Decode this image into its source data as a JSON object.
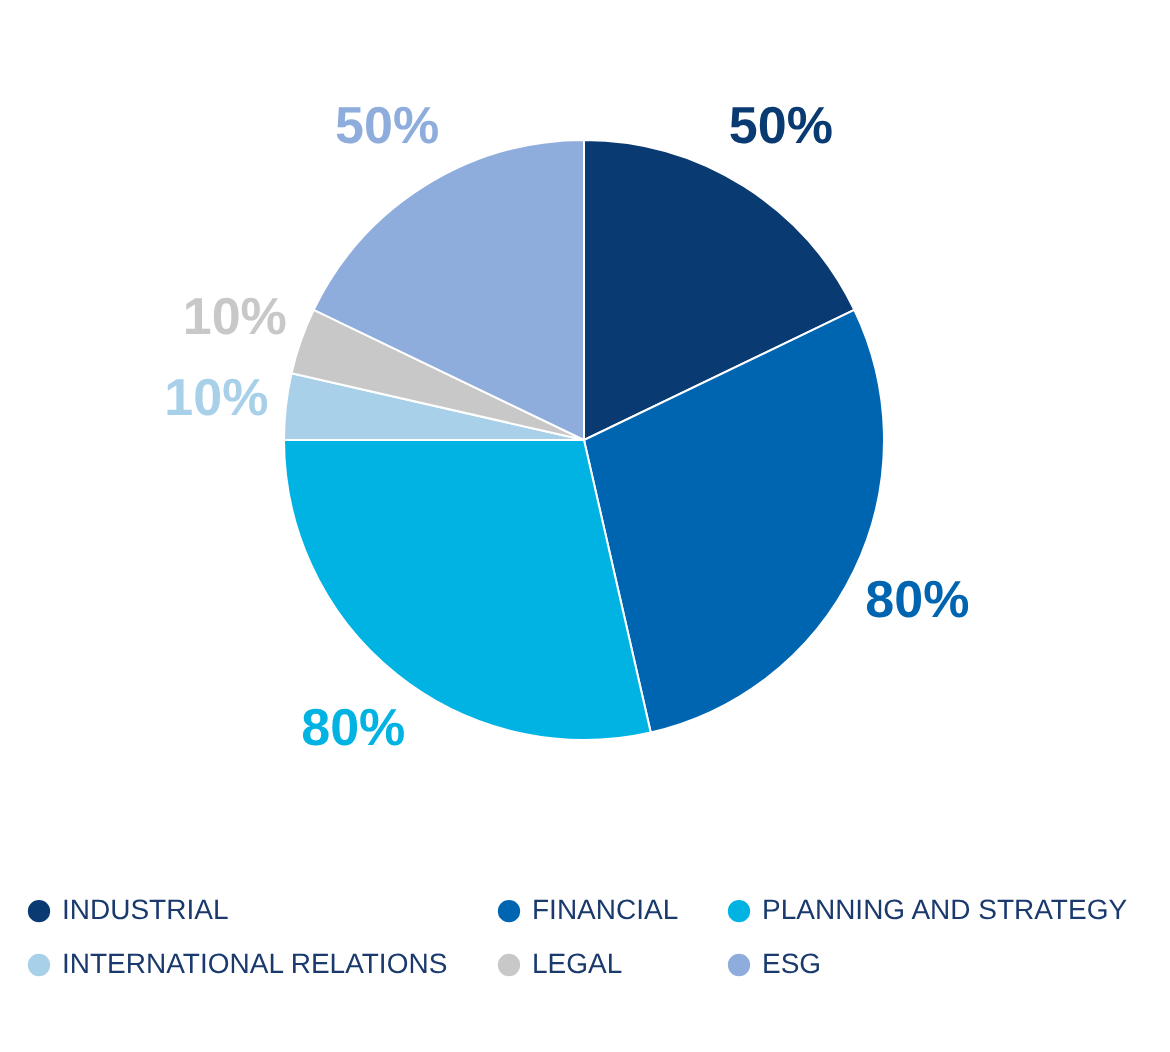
{
  "chart_data": {
    "type": "pie",
    "categories": [
      "INDUSTRIAL",
      "FINANCIAL",
      "PLANNING AND STRATEGY",
      "INTERNATIONAL RELATIONS",
      "LEGAL",
      "ESG"
    ],
    "values": [
      50,
      80,
      80,
      10,
      10,
      50
    ],
    "colors": [
      "#0a3a72",
      "#0065b1",
      "#00b3e3",
      "#a8d0e8",
      "#c8c8c8",
      "#8eacdc"
    ],
    "value_labels": [
      "50%",
      "80%",
      "80%",
      "10%",
      "10%",
      "50%"
    ],
    "legend": "bottom"
  }
}
